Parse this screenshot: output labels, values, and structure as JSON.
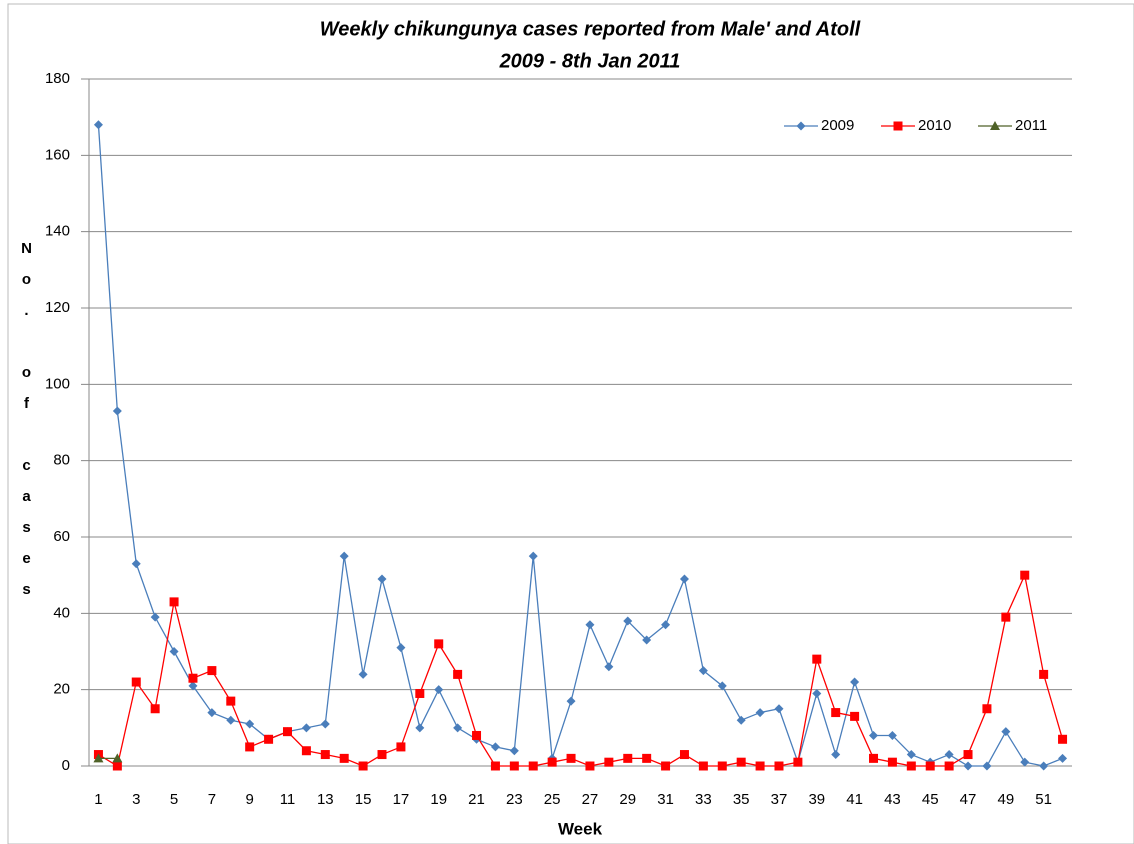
{
  "chart_data": {
    "type": "line",
    "title": "Weekly chikungunya cases reported from Male' and Atoll",
    "subtitle": "2009 - 8th Jan 2011",
    "x_label": "Week",
    "y_label": "No. of cases",
    "categories": [
      1,
      null,
      3,
      null,
      5,
      null,
      7,
      null,
      9,
      null,
      11,
      null,
      13,
      null,
      15,
      null,
      17,
      null,
      19,
      null,
      21,
      null,
      23,
      null,
      25,
      null,
      27,
      null,
      29,
      null,
      31,
      null,
      33,
      null,
      35,
      null,
      37,
      null,
      39,
      null,
      41,
      null,
      43,
      null,
      45,
      null,
      47,
      null,
      49,
      null,
      51,
      null
    ],
    "series": [
      {
        "name": "2009",
        "color": "#4a7ebb",
        "marker": "diamond",
        "values": [
          168,
          93,
          53,
          39,
          30,
          21,
          14,
          12,
          11,
          7,
          9,
          10,
          11,
          55,
          24,
          49,
          31,
          10,
          20,
          10,
          7,
          5,
          4,
          55,
          2,
          17,
          37,
          26,
          38,
          33,
          37,
          49,
          25,
          21,
          12,
          14,
          15,
          1,
          19,
          3,
          22,
          8,
          8,
          3,
          1,
          3,
          0,
          0,
          9,
          1,
          0,
          2
        ]
      },
      {
        "name": "2010",
        "color": "#ff0000",
        "marker": "square",
        "values": [
          3,
          0,
          22,
          15,
          43,
          23,
          25,
          17,
          5,
          7,
          9,
          4,
          3,
          2,
          0,
          3,
          5,
          19,
          32,
          24,
          8,
          0,
          0,
          0,
          1,
          2,
          0,
          1,
          2,
          2,
          0,
          3,
          0,
          0,
          1,
          0,
          0,
          1,
          28,
          14,
          13,
          2,
          1,
          0,
          0,
          0,
          3,
          15,
          39,
          50,
          24,
          7
        ]
      },
      {
        "name": "2011",
        "color": "#4f6228",
        "marker": "triangle",
        "values": [
          2,
          2,
          null,
          null,
          null,
          null,
          null,
          null,
          null,
          null,
          null,
          null,
          null,
          null,
          null,
          null,
          null,
          null,
          null,
          null,
          null,
          null,
          null,
          null,
          null,
          null,
          null,
          null,
          null,
          null,
          null,
          null,
          null,
          null,
          null,
          null,
          null,
          null,
          null,
          null,
          null,
          null,
          null,
          null,
          null,
          null,
          null,
          null,
          null,
          null,
          null,
          null
        ]
      }
    ],
    "ylim": [
      0,
      180
    ],
    "yticks": [
      0,
      20,
      40,
      60,
      80,
      100,
      120,
      140,
      160,
      180
    ],
    "grid": true,
    "legend": "top-right"
  }
}
